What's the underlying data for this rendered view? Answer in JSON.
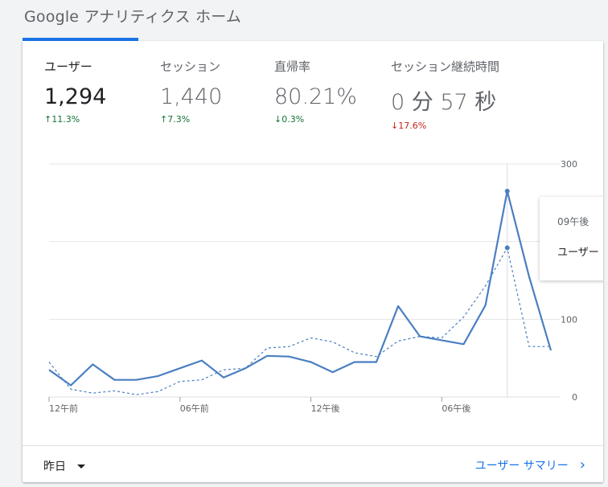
{
  "page_title": "Google アナリティクス ホーム",
  "metrics": [
    {
      "label": "ユーザー",
      "value": "1,294",
      "delta": "11.3%",
      "direction": "up",
      "active": true
    },
    {
      "label": "セッション",
      "value": "1,440",
      "delta": "7.3%",
      "direction": "up",
      "active": false
    },
    {
      "label": "直帰率",
      "value": "80.21%",
      "delta": "0.3%",
      "direction": "down",
      "active": false
    },
    {
      "label": "セッション継続時間",
      "value": "0 分 57 秒",
      "delta": "17.6%",
      "direction": "down",
      "active": false
    }
  ],
  "colors": {
    "accent": "#1a73e8",
    "series": "#4a7fc1",
    "up": "#137333",
    "down": "#c5221f"
  },
  "chart_data": {
    "type": "line",
    "xlabel": "",
    "ylabel": "",
    "x_tick_labels": [
      "12午前",
      "06午前",
      "12午後",
      "06午後"
    ],
    "x_tick_indices": [
      0,
      6,
      12,
      18
    ],
    "y_ticks": [
      "300",
      "100",
      "0"
    ],
    "ylim": [
      0,
      300
    ],
    "series": [
      {
        "style": "solid",
        "values": [
          35,
          15,
          42,
          22,
          22,
          27,
          37,
          47,
          25,
          37,
          53,
          52,
          45,
          32,
          45,
          45,
          117,
          78,
          73,
          68,
          118,
          265,
          155,
          60
        ]
      },
      {
        "style": "dashed",
        "values": [
          45,
          10,
          5,
          8,
          3,
          7,
          20,
          22,
          35,
          37,
          63,
          65,
          76,
          71,
          57,
          52,
          72,
          78,
          76,
          103,
          143,
          192,
          65,
          65
        ]
      }
    ],
    "hover_index": 21
  },
  "tooltip": {
    "time": "09午後",
    "series_label": "ユーザー"
  },
  "footer": {
    "period_label": "昨日",
    "report_link": "ユーザー サマリー"
  }
}
